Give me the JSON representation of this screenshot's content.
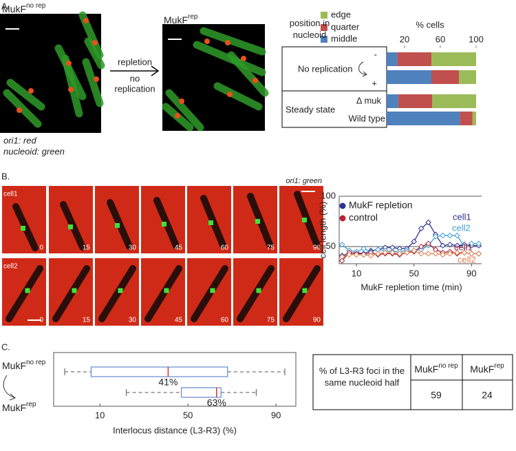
{
  "panels": {
    "a": "A.",
    "b": "B.",
    "c": "C."
  },
  "panel_a": {
    "arrow_labels": [
      "repletion",
      "no",
      "replication"
    ],
    "captions": [
      "ori1: red",
      "nucleoid: green"
    ],
    "row_header": "position in nucleoid",
    "groups": [
      "No replication",
      "Steady state"
    ]
  },
  "panel_b": {
    "channel": "ori1: green",
    "cells": [
      "cell1",
      "cell2"
    ],
    "times": [
      0,
      15,
      30,
      45,
      60,
      75,
      90
    ]
  },
  "table": {
    "row_label": "% of L3-R3 foci in the same nucleoid half",
    "values": [
      59,
      24
    ]
  },
  "chart_data": [
    {
      "type": "bar",
      "orientation": "horizontal",
      "stacked": true,
      "xlabel": "% cells",
      "categories": [
        "-",
        "+",
        "Δ muk",
        "Wild type"
      ],
      "xlim": [
        0,
        100
      ],
      "xticks": [
        20,
        60,
        100
      ],
      "series": [
        {
          "name": "middle",
          "color": "#4f81bd",
          "values": [
            12,
            50,
            13,
            82
          ]
        },
        {
          "name": "quarter",
          "color": "#c0504d",
          "values": [
            38,
            31,
            38,
            14
          ]
        },
        {
          "name": "edge",
          "color": "#9bbb59",
          "values": [
            50,
            19,
            49,
            4
          ]
        }
      ]
    },
    {
      "type": "line",
      "xlabel": "MukF repletion time (min)",
      "ylabel": "cell length (%)",
      "x": [
        0,
        5,
        10,
        15,
        20,
        25,
        30,
        35,
        40,
        45,
        50,
        55,
        60,
        65,
        70,
        75,
        80,
        85,
        90,
        95
      ],
      "xlim": [
        -2,
        97
      ],
      "xticks": [
        10,
        50,
        90
      ],
      "ylim": [
        33,
        100
      ],
      "yticks": [
        50,
        100
      ],
      "grid": true,
      "legend": [
        {
          "name": "MukF repletion",
          "color": "#2e3192"
        },
        {
          "name": "control",
          "color": "#b5263b"
        }
      ],
      "series": [
        {
          "name": "cell1",
          "color": "#2e3192",
          "values": [
            41,
            43,
            44,
            43,
            46,
            47,
            49,
            49,
            48,
            48,
            55,
            68,
            74,
            62,
            51,
            52,
            51,
            52,
            51,
            51
          ]
        },
        {
          "name": "cell2",
          "color": "#3b9fd3",
          "values": [
            52,
            46,
            45,
            48,
            45,
            47,
            46,
            45,
            45,
            46,
            46,
            47,
            51,
            60,
            61,
            61,
            61,
            50,
            53,
            53
          ]
        },
        {
          "name": "cell1",
          "color": "#a3213a",
          "values": [
            36,
            44,
            43,
            42,
            44,
            42,
            43,
            43,
            42,
            44,
            45,
            50,
            53,
            47,
            44,
            45,
            43,
            44,
            43,
            43
          ]
        },
        {
          "name": "cell2",
          "color": "#e07b4a",
          "values": [
            40,
            42,
            42,
            42,
            41,
            43,
            44,
            44,
            43,
            44,
            46,
            43,
            43,
            43,
            42,
            43,
            44,
            44,
            43,
            43
          ]
        }
      ]
    },
    {
      "type": "box",
      "orientation": "horizontal",
      "xlabel": "Interlocus distance (L3-R3) (%)",
      "xlim": [
        -11,
        99
      ],
      "xticks": [
        10,
        50,
        90
      ],
      "categories": [
        {
          "base": "MukF",
          "sup": "no rep"
        },
        {
          "base": "MukF",
          "sup": "rep"
        }
      ],
      "whislo": [
        -6,
        22
      ],
      "q1": [
        6,
        47
      ],
      "medians": [
        41,
        63
      ],
      "q3": [
        68,
        65
      ],
      "whishi": [
        94,
        81
      ],
      "value_labels": [
        "41%",
        "63%"
      ]
    }
  ]
}
